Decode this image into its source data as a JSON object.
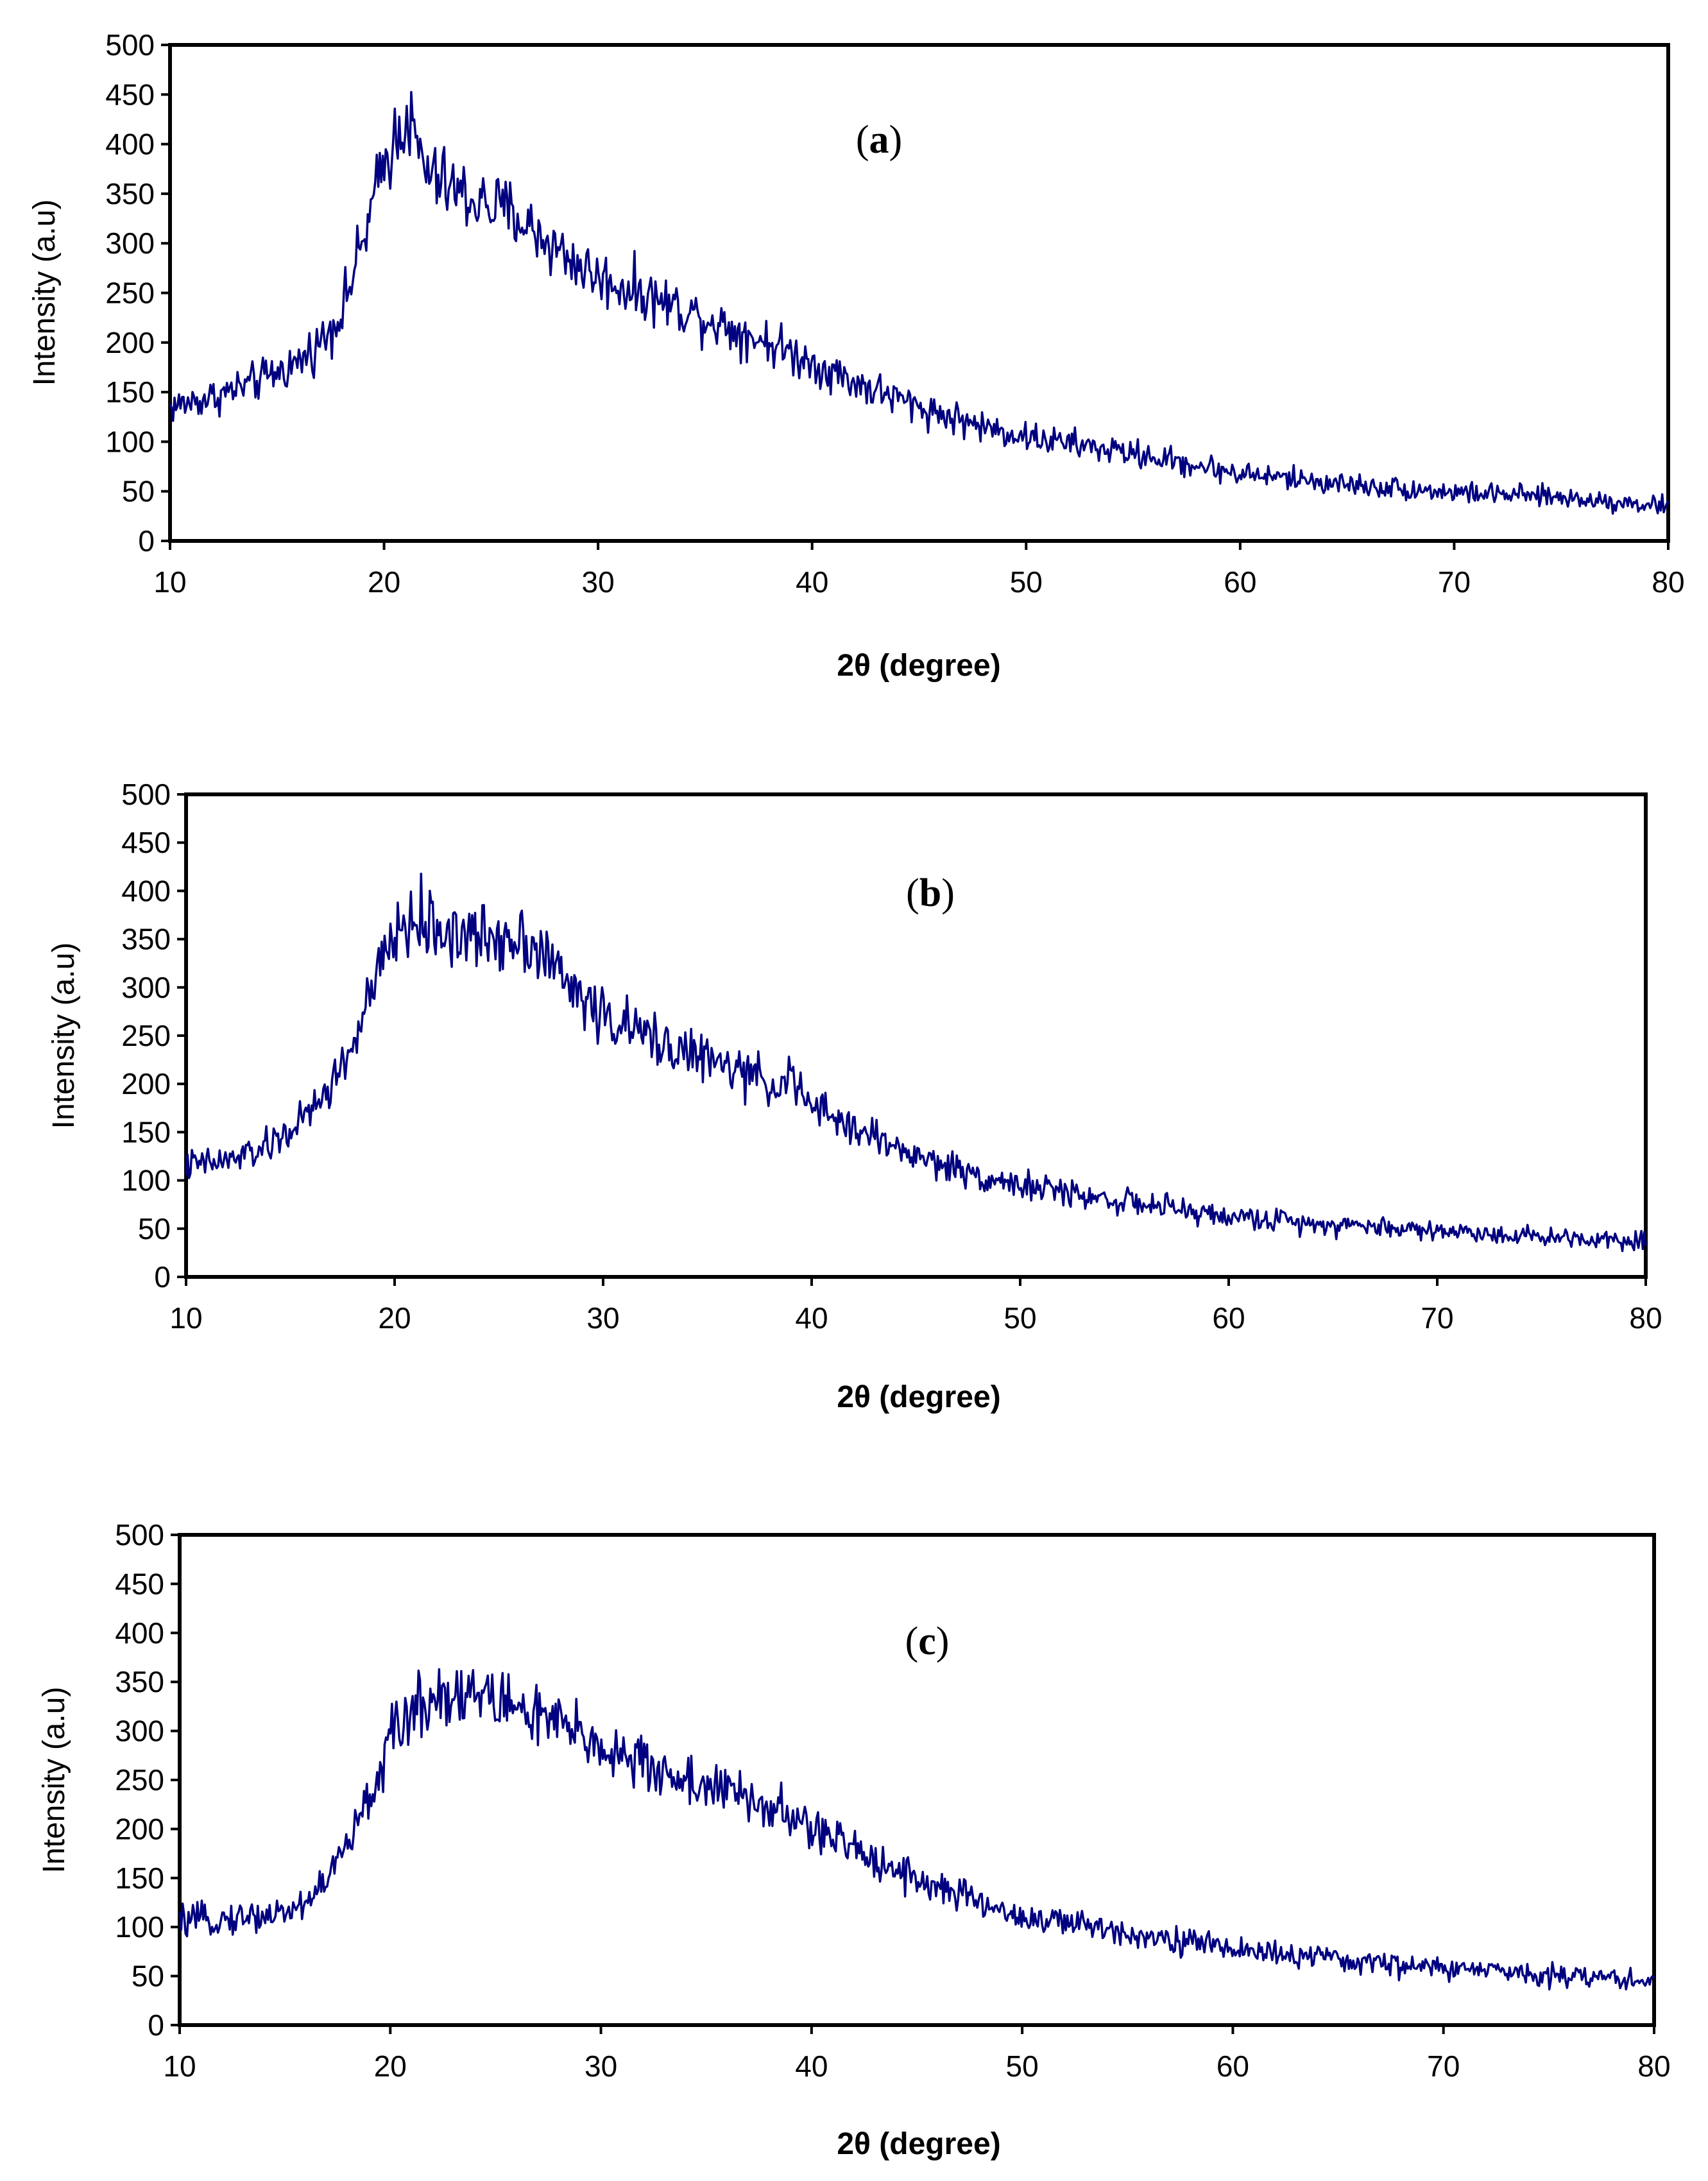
{
  "figure": {
    "line_color": "#000080",
    "frame_color": "#000000",
    "background": "#ffffff"
  },
  "chart_data": [
    {
      "type": "line",
      "panel": "a",
      "label_open": "(",
      "label_letter": "a",
      "label_close": ")",
      "xlabel_prefix": "2",
      "xlabel_symbol": "θ",
      "xlabel_suffix": " (degree)",
      "ylabel": "Intensity (a.u)",
      "xlim": [
        10,
        80
      ],
      "ylim": [
        0,
        500
      ],
      "xticks": [
        "10",
        "20",
        "30",
        "40",
        "50",
        "60",
        "70",
        "80"
      ],
      "yticks": [
        "0",
        "50",
        "100",
        "150",
        "200",
        "250",
        "300",
        "350",
        "400",
        "450",
        "500"
      ],
      "grid": false,
      "series": [
        {
          "name": "a",
          "x": [
            10,
            12,
            14,
            16,
            17,
            18,
            19,
            20,
            21,
            22,
            24,
            26,
            28,
            30,
            32,
            35,
            38,
            40,
            42,
            45,
            48,
            50,
            55,
            60,
            65,
            70,
            75,
            80
          ],
          "values": [
            135,
            145,
            160,
            180,
            200,
            230,
            300,
            380,
            430,
            370,
            345,
            330,
            295,
            265,
            250,
            225,
            200,
            180,
            160,
            135,
            115,
            105,
            88,
            68,
            57,
            49,
            44,
            35
          ]
        }
      ]
    },
    {
      "type": "line",
      "panel": "b",
      "label_open": "(",
      "label_letter": "b",
      "label_close": ")",
      "xlabel_prefix": "2",
      "xlabel_symbol": "θ",
      "xlabel_suffix": " (degree)",
      "ylabel": "Intensity (a.u)",
      "xlim": [
        10,
        80
      ],
      "ylim": [
        0,
        500
      ],
      "xticks": [
        "10",
        "20",
        "30",
        "40",
        "50",
        "60",
        "70",
        "80"
      ],
      "yticks": [
        "0",
        "50",
        "100",
        "150",
        "200",
        "250",
        "300",
        "350",
        "400",
        "450",
        "500"
      ],
      "grid": false,
      "series": [
        {
          "name": "b",
          "x": [
            10,
            12,
            14,
            16,
            17,
            18,
            19,
            20,
            21,
            22,
            24,
            26,
            27,
            28,
            30,
            32,
            35,
            38,
            39,
            40,
            42,
            45,
            48,
            50,
            55,
            60,
            65,
            70,
            75,
            80
          ],
          "values": [
            115,
            120,
            135,
            170,
            200,
            240,
            300,
            355,
            370,
            360,
            350,
            355,
            340,
            310,
            270,
            250,
            225,
            200,
            205,
            175,
            155,
            125,
            105,
            95,
            78,
            62,
            55,
            48,
            42,
            38
          ]
        }
      ]
    },
    {
      "type": "line",
      "panel": "c",
      "label_open": "(",
      "label_letter": "c",
      "label_close": ")",
      "xlabel_prefix": "2",
      "xlabel_symbol": "θ",
      "xlabel_suffix": " (degree)",
      "ylabel": "Intensity (a.u)",
      "xlim": [
        10,
        80
      ],
      "ylim": [
        0,
        500
      ],
      "xticks": [
        "10",
        "20",
        "30",
        "40",
        "50",
        "60",
        "70",
        "80"
      ],
      "yticks": [
        "0",
        "50",
        "100",
        "150",
        "200",
        "250",
        "300",
        "350",
        "400",
        "450",
        "500"
      ],
      "grid": false,
      "series": [
        {
          "name": "c",
          "x": [
            10,
            12,
            14,
            15,
            16,
            17,
            18,
            19,
            20,
            21,
            22,
            23,
            24,
            26,
            28,
            30,
            32,
            34,
            36,
            38,
            40,
            42,
            44,
            46,
            48,
            50,
            55,
            60,
            65,
            70,
            75,
            80
          ],
          "values": [
            105,
            108,
            112,
            115,
            125,
            150,
            185,
            230,
            290,
            320,
            335,
            340,
            338,
            325,
            305,
            285,
            265,
            250,
            238,
            222,
            200,
            180,
            160,
            140,
            125,
            110,
            95,
            78,
            66,
            58,
            52,
            45
          ]
        }
      ]
    }
  ]
}
